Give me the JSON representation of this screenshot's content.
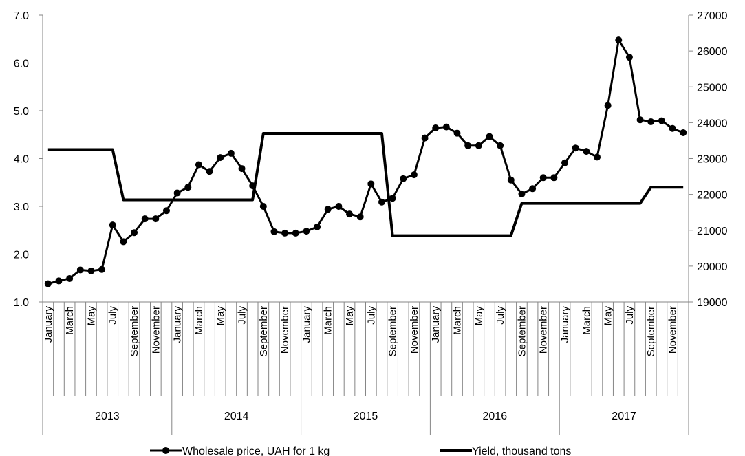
{
  "chart_data": {
    "type": "line",
    "title": "",
    "xlabel": "",
    "ylabel": "",
    "ylim": [
      1.0,
      7.0
    ],
    "y2lim": [
      19000,
      27000
    ],
    "left_ticks": [
      "1.0",
      "2.0",
      "3.0",
      "4.0",
      "5.0",
      "6.0",
      "7.0"
    ],
    "right_ticks": [
      "19000",
      "20000",
      "21000",
      "22000",
      "23000",
      "24000",
      "25000",
      "26000",
      "27000"
    ],
    "month_labels": [
      "January",
      "March",
      "May",
      "July",
      "September",
      "November"
    ],
    "years": [
      "2013",
      "2014",
      "2015",
      "2016",
      "2017"
    ],
    "grid": false,
    "legend_position": "bottom",
    "series": [
      {
        "name": "Wholesale price, UAH for 1 kg",
        "axis": "left",
        "marker": "circle",
        "color": "#000000",
        "values": [
          1.38,
          1.44,
          1.49,
          1.67,
          1.65,
          1.68,
          2.61,
          2.26,
          2.45,
          2.74,
          2.74,
          2.91,
          3.28,
          3.4,
          3.87,
          3.73,
          4.02,
          4.11,
          3.79,
          3.43,
          3.0,
          2.47,
          2.44,
          2.44,
          2.48,
          2.57,
          2.94,
          3.0,
          2.84,
          2.78,
          3.47,
          3.09,
          3.17,
          3.58,
          3.66,
          4.43,
          4.64,
          4.66,
          4.53,
          4.27,
          4.27,
          4.46,
          4.27,
          3.55,
          3.26,
          3.37,
          3.6,
          3.6,
          3.91,
          4.22,
          4.15,
          4.03,
          5.11,
          6.48,
          6.12,
          4.81,
          4.77,
          4.79,
          4.63,
          4.54
        ]
      },
      {
        "name": "Yield, thousand tons",
        "axis": "right",
        "marker": "none",
        "color": "#000000",
        "values": [
          23250,
          23250,
          23250,
          23250,
          23250,
          23250,
          23250,
          21850,
          21850,
          21850,
          21850,
          21850,
          21850,
          21850,
          21850,
          21850,
          21850,
          21850,
          21850,
          21850,
          23700,
          23700,
          23700,
          23700,
          23700,
          23700,
          23700,
          23700,
          23700,
          23700,
          23700,
          23700,
          20850,
          20850,
          20850,
          20850,
          20850,
          20850,
          20850,
          20850,
          20850,
          20850,
          20850,
          20850,
          21750,
          21750,
          21750,
          21750,
          21750,
          21750,
          21750,
          21750,
          21750,
          21750,
          21750,
          21750,
          22200,
          22200,
          22200,
          22200
        ]
      }
    ]
  }
}
